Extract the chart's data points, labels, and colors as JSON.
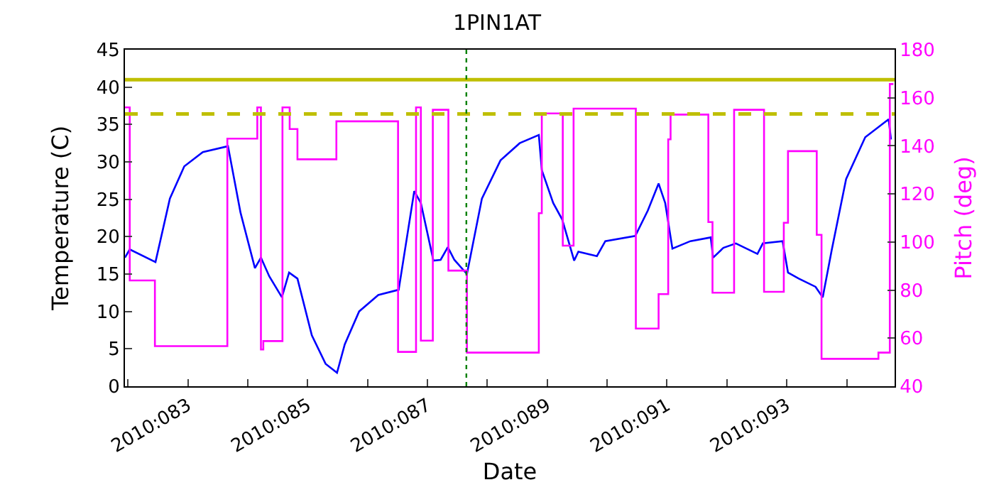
{
  "chart_data": {
    "type": "line",
    "title": "1PIN1AT",
    "xlabel": "Date",
    "ylabel": "Temperature (C)",
    "y2label": "Pitch (deg)",
    "xlim": [
      "2010-03-22T22:48",
      "2010-04-04T19:12"
    ],
    "xticks": [
      {
        "value": "2010-03-23",
        "label": null
      },
      {
        "value": "2010-03-24",
        "label": "2010:083"
      },
      {
        "value": "2010-03-25",
        "label": null
      },
      {
        "value": "2010-03-26",
        "label": "2010:085"
      },
      {
        "value": "2010-03-27",
        "label": null
      },
      {
        "value": "2010-03-28",
        "label": "2010:087"
      },
      {
        "value": "2010-03-29",
        "label": null
      },
      {
        "value": "2010-03-30",
        "label": "2010:089"
      },
      {
        "value": "2010-03-31",
        "label": null
      },
      {
        "value": "2010-04-01",
        "label": "2010:091"
      },
      {
        "value": "2010-04-02",
        "label": null
      },
      {
        "value": "2010-04-03",
        "label": "2010:093"
      },
      {
        "value": "2010-04-04",
        "label": null
      }
    ],
    "ylim": [
      0,
      45
    ],
    "yticks": [
      0,
      5,
      10,
      15,
      20,
      25,
      30,
      35,
      40,
      45
    ],
    "y2lim": [
      40,
      180
    ],
    "y2ticks": [
      40,
      60,
      80,
      100,
      120,
      140,
      160,
      180
    ],
    "marker": "none",
    "line_style": "solid",
    "series": [
      {
        "color": "#0000ff",
        "x": [
          "2010-03-22T22:48",
          "2010-03-23T00:43",
          "2010-03-23T11:02",
          "2010-03-23T16:48",
          "2010-03-23T22:34",
          "2010-03-24T06:00",
          "2010-03-24T16:05",
          "2010-03-24T21:07",
          "2010-03-25T02:53",
          "2010-03-25T05:17",
          "2010-03-25T08:38",
          "2010-03-25T13:41",
          "2010-03-25T16:34",
          "2010-03-25T19:55",
          "2010-03-26T01:41",
          "2010-03-26T07:12",
          "2010-03-26T11:46",
          "2010-03-26T14:53",
          "2010-03-26T20:38",
          "2010-03-27T04:19",
          "2010-03-27T12:29",
          "2010-03-27T18:43",
          "2010-03-27T21:22",
          "2010-03-28T02:24",
          "2010-03-28T05:17",
          "2010-03-28T08:10",
          "2010-03-28T10:48",
          "2010-03-28T15:50",
          "2010-03-28T21:50",
          "2010-03-29T05:17",
          "2010-03-29T12:58",
          "2010-03-29T20:38",
          "2010-03-29T21:50",
          "2010-03-30T02:24",
          "2010-03-30T06:00",
          "2010-03-30T10:48",
          "2010-03-30T12:29",
          "2010-03-30T19:55",
          "2010-03-30T23:17",
          "2010-03-31T11:17",
          "2010-03-31T16:19",
          "2010-03-31T20:38",
          "2010-03-31T23:17",
          "2010-04-01T02:10",
          "2010-04-01T09:22",
          "2010-04-01T17:31",
          "2010-04-01T18:29",
          "2010-04-01T22:34",
          "2010-04-02T03:36",
          "2010-04-02T12:14",
          "2010-04-02T14:24",
          "2010-04-02T22:19",
          "2010-04-03T00:29",
          "2010-04-03T04:48",
          "2010-04-03T11:31",
          "2010-04-03T14:24",
          "2010-04-03T18:00",
          "2010-04-03T23:46",
          "2010-04-04T07:26",
          "2010-04-04T16:48",
          "2010-04-04T17:46"
        ],
        "values": [
          17.2,
          18.3,
          16.6,
          25.1,
          29.4,
          31.3,
          32.1,
          23.2,
          15.8,
          17.2,
          14.7,
          11.9,
          15.2,
          14.4,
          6.8,
          3.0,
          1.8,
          5.6,
          10.0,
          12.2,
          12.9,
          26.1,
          24.5,
          16.8,
          16.9,
          18.6,
          16.9,
          15.0,
          25.1,
          30.2,
          32.5,
          33.6,
          28.9,
          24.5,
          22.3,
          16.8,
          18.0,
          17.4,
          19.4,
          20.1,
          23.5,
          27.1,
          24.5,
          18.4,
          19.4,
          19.9,
          17.2,
          18.5,
          19.1,
          17.7,
          19.1,
          19.4,
          15.2,
          14.4,
          13.3,
          11.9,
          18.2,
          27.7,
          33.3,
          35.7,
          33.0
        ]
      },
      {
        "type": "step",
        "axis": "y2",
        "color": "#ff00ff",
        "x": [
          "2010-03-22T22:48",
          "2010-03-23T00:43",
          "2010-03-23T10:48",
          "2010-03-24T15:50",
          "2010-03-25T03:50",
          "2010-03-25T05:17",
          "2010-03-25T06:14",
          "2010-03-25T13:55",
          "2010-03-25T16:48",
          "2010-03-25T19:55",
          "2010-03-26T11:31",
          "2010-03-27T12:14",
          "2010-03-27T19:26",
          "2010-03-27T21:22",
          "2010-03-28T02:10",
          "2010-03-28T08:24",
          "2010-03-28T15:50",
          "2010-03-29T20:38",
          "2010-03-29T21:50",
          "2010-03-30T06:14",
          "2010-03-30T10:34",
          "2010-03-31T11:31",
          "2010-03-31T20:38",
          "2010-04-01T00:29",
          "2010-04-01T01:26",
          "2010-04-01T16:34",
          "2010-04-01T18:14",
          "2010-04-02T02:53",
          "2010-04-02T14:53",
          "2010-04-02T22:48",
          "2010-04-03T00:29",
          "2010-04-03T12:00",
          "2010-04-03T13:55",
          "2010-04-04T12:43",
          "2010-04-04T17:17",
          "2010-04-04T18:43"
        ],
        "values": [
          156,
          84,
          56.7,
          143,
          156,
          55.3,
          58.8,
          156,
          147,
          134.4,
          150.2,
          54.3,
          156,
          59,
          155,
          88.1,
          54,
          112,
          153.5,
          98.5,
          155.5,
          64,
          78.3,
          142.7,
          153,
          108.3,
          78.9,
          155,
          79.3,
          108,
          137.8,
          103,
          51.4,
          54,
          165.7,
          165.7
        ]
      }
    ],
    "ref_lines": [
      {
        "axis": "y",
        "value": 41,
        "color": "#bfbf00",
        "line_style": "solid"
      },
      {
        "axis": "y",
        "value": 36.4,
        "color": "#bfbf00",
        "line_style": "dashed"
      },
      {
        "axis": "x",
        "value": "2010-03-28T15:36",
        "color": "#008000",
        "line_style": "dotted"
      }
    ]
  }
}
